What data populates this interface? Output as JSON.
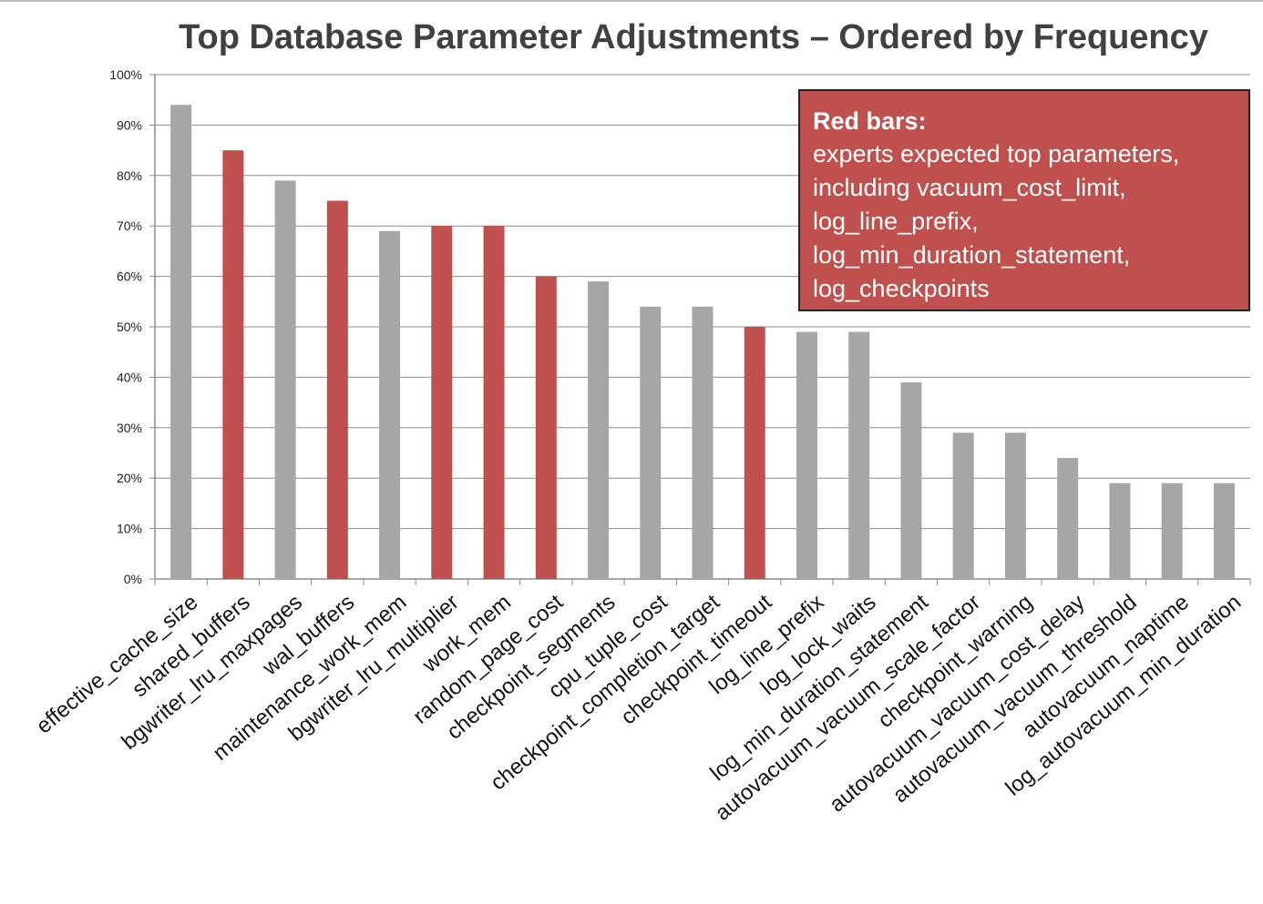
{
  "chart_data": {
    "type": "bar",
    "title": "Top Database Parameter Adjustments – Ordered by Frequency",
    "xlabel": "",
    "ylabel": "",
    "ylim": [
      0,
      100
    ],
    "yticks": [
      "0%",
      "10%",
      "20%",
      "30%",
      "40%",
      "50%",
      "60%",
      "70%",
      "80%",
      "90%",
      "100%"
    ],
    "grid": true,
    "categories": [
      "effective_cache_size",
      "shared_buffers",
      "bgwriter_lru_maxpages",
      "wal_buffers",
      "maintenance_work_mem",
      "bgwriter_lru_multiplier",
      "work_mem",
      "random_page_cost",
      "checkpoint_segments",
      "cpu_tuple_cost",
      "checkpoint_completion_target",
      "checkpoint_timeout",
      "log_line_prefix",
      "log_lock_waits",
      "log_min_duration_statement",
      "autovacuum_vacuum_scale_factor",
      "checkpoint_warning",
      "autovacuum_vacuum_cost_delay",
      "autovacuum_vacuum_threshold",
      "autovacuum_naptime",
      "log_autovacuum_min_duration"
    ],
    "values": [
      94,
      85,
      79,
      75,
      69,
      70,
      70,
      60,
      59,
      54,
      54,
      50,
      49,
      49,
      39,
      29,
      29,
      24,
      19,
      19,
      19
    ],
    "highlighted": [
      false,
      true,
      false,
      true,
      false,
      true,
      true,
      true,
      false,
      false,
      false,
      true,
      false,
      false,
      false,
      false,
      false,
      false,
      false,
      false,
      false
    ],
    "colors": {
      "default": "#a6a6a6",
      "highlight": "#c0504d",
      "axis": "#8c8c8c",
      "grid": "#8c8c8c"
    }
  },
  "annotation": {
    "title": "Red bars:",
    "lines": [
      "experts expected top parameters,",
      "including vacuum_cost_limit,",
      "log_line_prefix,",
      "log_min_duration_statement,",
      "log_checkpoints"
    ]
  }
}
